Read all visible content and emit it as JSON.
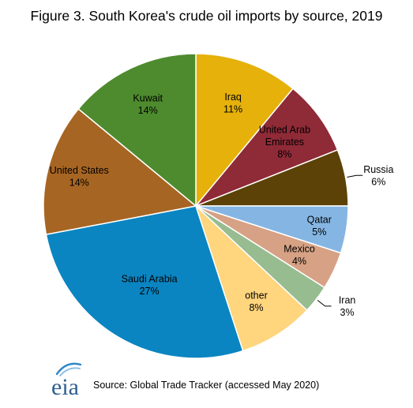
{
  "title": "Figure 3. South Korea's crude oil imports by source, 2019",
  "source": "Source: Global Trade Tracker (accessed May 2020)",
  "logo_text": "eia",
  "chart_data": {
    "type": "pie",
    "title": "Figure 3. South Korea's crude oil imports by source, 2019",
    "start_angle_deg": 0,
    "direction": "clockwise",
    "slices": [
      {
        "label": "Iraq",
        "value": 11,
        "value_label": "11%",
        "color": "#E5B10A",
        "label_side": "inside"
      },
      {
        "label": "United Arab Emirates",
        "label_lines": [
          "United Arab",
          "Emirates"
        ],
        "value": 8,
        "value_label": "8%",
        "color": "#8F2A37",
        "label_side": "inside"
      },
      {
        "label": "Russia",
        "value": 6,
        "value_label": "6%",
        "color": "#5C4206",
        "label_side": "outside"
      },
      {
        "label": "Qatar",
        "value": 5,
        "value_label": "5%",
        "color": "#85B6E3",
        "label_side": "inside"
      },
      {
        "label": "Mexico",
        "value": 4,
        "value_label": "4%",
        "color": "#D6A184",
        "label_side": "inside"
      },
      {
        "label": "Iran",
        "value": 3,
        "value_label": "3%",
        "color": "#97BC90",
        "label_side": "outside"
      },
      {
        "label": "other",
        "value": 8,
        "value_label": "8%",
        "color": "#FFD57E",
        "label_side": "inside"
      },
      {
        "label": "Saudi Arabia",
        "value": 27,
        "value_label": "27%",
        "color": "#0A85C1",
        "label_side": "inside"
      },
      {
        "label": "United States",
        "value": 14,
        "value_label": "14%",
        "color": "#A76523",
        "label_side": "inside"
      },
      {
        "label": "Kuwait",
        "value": 14,
        "value_label": "14%",
        "color": "#4E8B2E",
        "label_side": "inside"
      }
    ]
  }
}
